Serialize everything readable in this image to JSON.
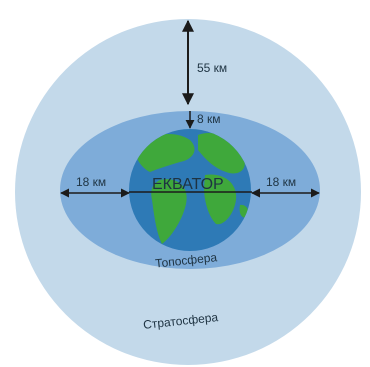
{
  "diagram": {
    "labels": {
      "strat_thickness": "55 км",
      "trop_polar_thickness": "8 км",
      "trop_equator_left": "18 км",
      "trop_equator_right": "18 км",
      "equator": "ЕКВАТОР",
      "troposphere": "Топосфера",
      "stratosphere": "Стратосфера"
    },
    "colors": {
      "stratosphere": "#c3d9ea",
      "troposphere": "#7eacd9",
      "ocean": "#2e7ab6",
      "land": "#3fa83b",
      "arrows": "#1b1b1b",
      "text": "#1e3342"
    }
  }
}
